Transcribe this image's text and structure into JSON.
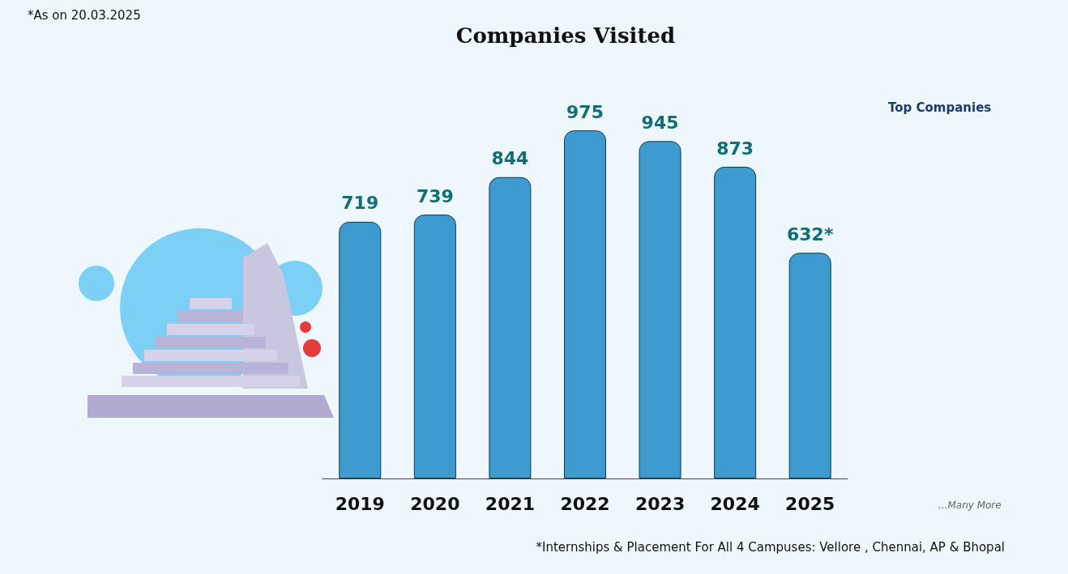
{
  "chart_data": {
    "type": "bar",
    "title": "Companies Visited",
    "categories": [
      "2019",
      "2020",
      "2021",
      "2022",
      "2023",
      "2024",
      "2025"
    ],
    "values": [
      719,
      739,
      844,
      975,
      945,
      873,
      632
    ],
    "value_labels": [
      "719",
      "739",
      "844",
      "975",
      "945",
      "873",
      "632*"
    ],
    "color": "#3d9bd0",
    "grid": false,
    "annotations": [
      "*As on 20.03.2025",
      "*Internships & Placement For All 4 Campuses: Vellore , Chennai, AP & Bhopal",
      "Top Companies",
      "...Many More"
    ]
  }
}
